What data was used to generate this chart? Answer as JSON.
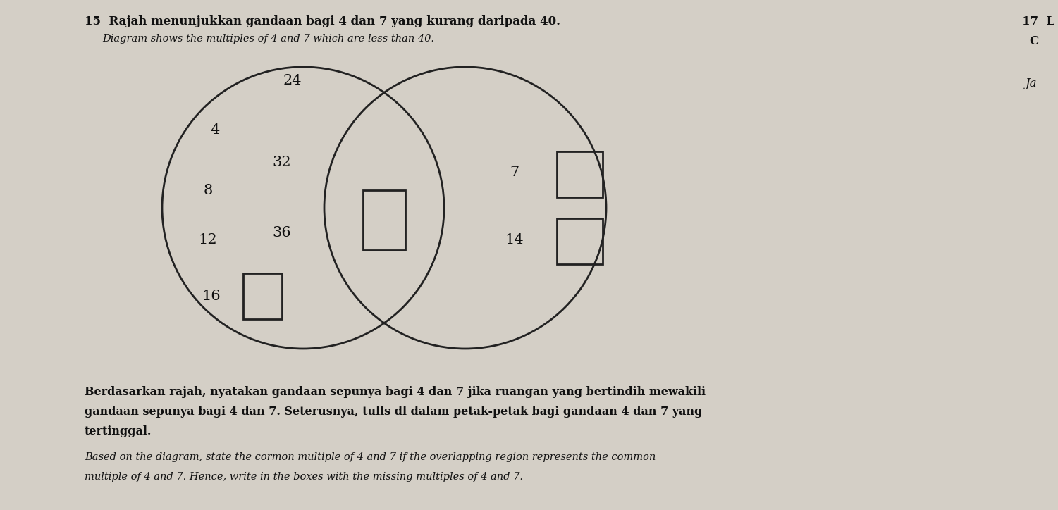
{
  "title_malay": "15  Rajah menunjukkan gandaan bagi 4 dan 7 yang kurang daripada 40.",
  "title_english": "Diagram shows the multiples of 4 and 7 which are less than 40.",
  "side_number": "17  L",
  "side_letter": "C",
  "side_ja": "Ja",
  "bg_color": "#cdc9c0",
  "circle_color": "#222222",
  "text_color": "#111111",
  "bottom_text_malay_line1": "Berdasarkan rajah, nyatakan gandaan sepunya bagi 4 dan 7 jika ruangan yang bertindih mewakili",
  "bottom_text_malay_line2": "gandaan sepunya bagi 4 dan 7. Seterusnya, tulls dl dalam petak-petak bagi gandaan 4 dan 7 yang",
  "bottom_text_malay_line3": "tertinggal.",
  "bottom_text_english_line1": "Based on the diagram, state the cormon multiple of 4 and 7 if the overlapping region represents the common",
  "bottom_text_english_line2": "multiple of 4 and 7. Hence, write in the boxes with the missing multiples of 4 and 7."
}
